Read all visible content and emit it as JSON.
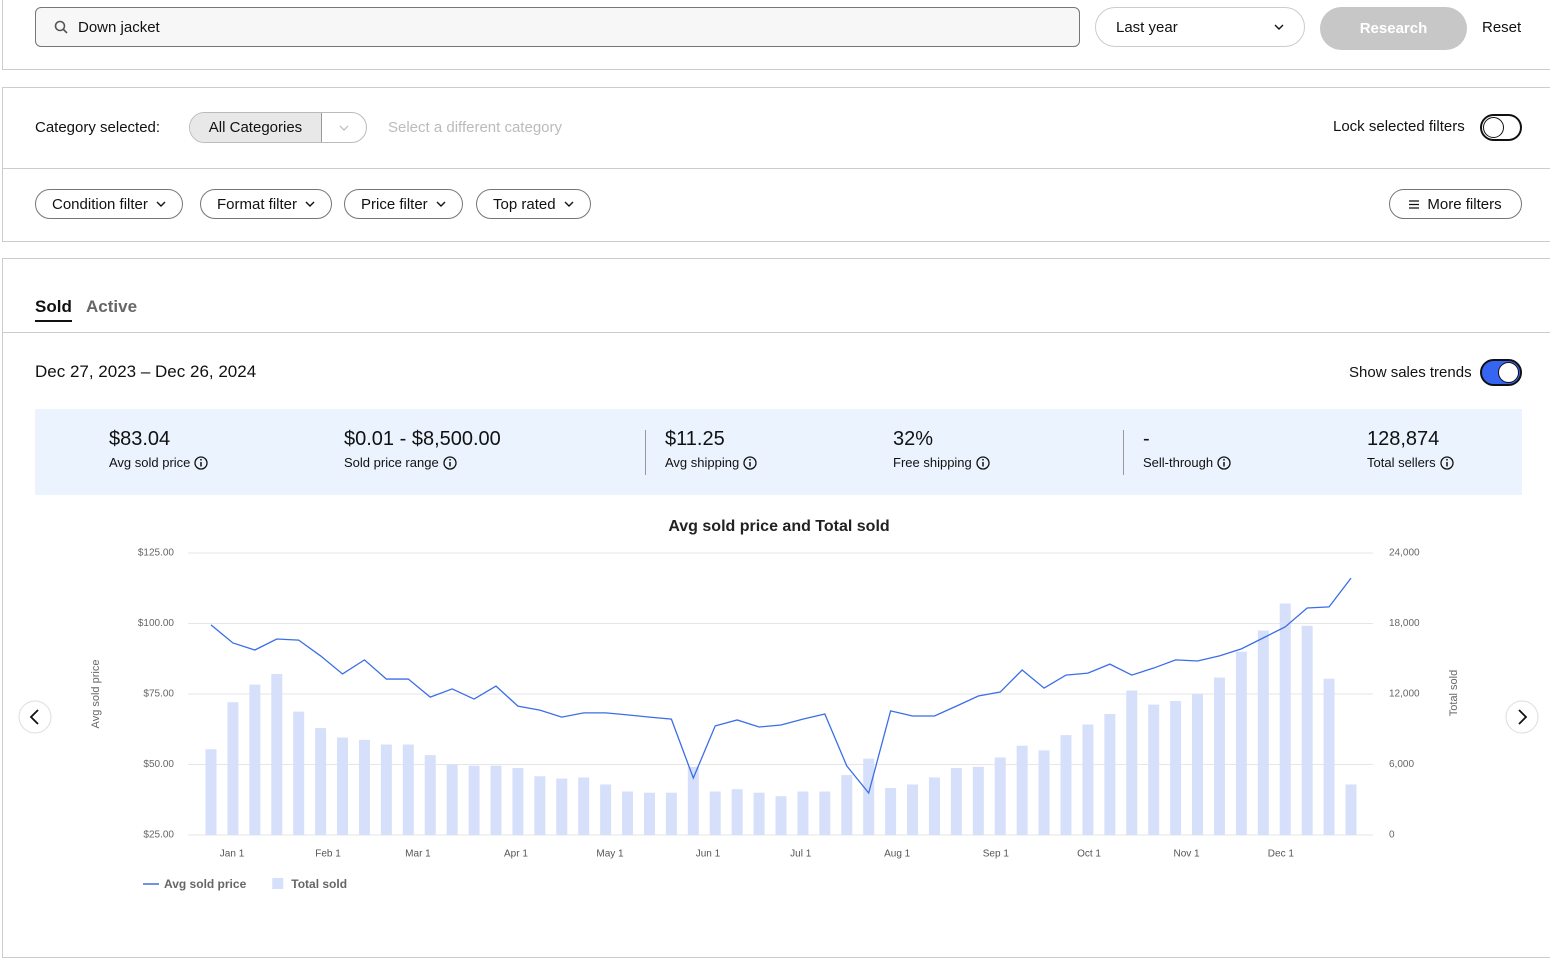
{
  "search": {
    "query": "Down jacket",
    "period": "Last year",
    "research_button": "Research",
    "reset_button": "Reset"
  },
  "category": {
    "label": "Category selected:",
    "selected": "All Categories",
    "hint": "Select a different category",
    "lock_label": "Lock selected filters"
  },
  "filters": {
    "items": [
      "Condition filter",
      "Format filter",
      "Price filter",
      "Top rated"
    ],
    "more": "More filters"
  },
  "tabs": [
    "Sold",
    "Active"
  ],
  "summary": {
    "date_range": "Dec 27, 2023 – Dec 26, 2024",
    "trends_label": "Show sales trends",
    "stats": [
      {
        "value": "$83.04",
        "label": "Avg sold price"
      },
      {
        "value": "$0.01 - $8,500.00",
        "label": "Sold price range"
      },
      {
        "value": "$11.25",
        "label": "Avg shipping"
      },
      {
        "value": "32%",
        "label": "Free shipping"
      },
      {
        "value": "-",
        "label": "Sell-through"
      },
      {
        "value": "128,874",
        "label": "Total sellers"
      }
    ]
  },
  "chart_data": {
    "type": "bar-line",
    "title": "Avg sold price and Total sold",
    "ylabel": "Avg sold price",
    "y2label": "Total sold",
    "categories": [
      null,
      null,
      null,
      null,
      null,
      null,
      null,
      null,
      null,
      null,
      null,
      null,
      null,
      null,
      null,
      null,
      null,
      null,
      null,
      null,
      null,
      null,
      null,
      null,
      null,
      null,
      null,
      null,
      null,
      null,
      null,
      null,
      null,
      null,
      null,
      null,
      null,
      null,
      null,
      null,
      null,
      null,
      null,
      null,
      null,
      null,
      null,
      null,
      null,
      null,
      null,
      null,
      null
    ],
    "xticks": [
      {
        "value": 0.96,
        "label": "Jan 1"
      },
      {
        "value": 5.34,
        "label": "Feb 1"
      },
      {
        "value": 9.44,
        "label": "Mar 1"
      },
      {
        "value": 13.91,
        "label": "Apr 1"
      },
      {
        "value": 18.2,
        "label": "May 1"
      },
      {
        "value": 22.67,
        "label": "Jun 1"
      },
      {
        "value": 26.9,
        "label": "Jul 1"
      },
      {
        "value": 31.3,
        "label": "Aug 1"
      },
      {
        "value": 35.8,
        "label": "Sep 1"
      },
      {
        "value": 40.05,
        "label": "Oct 1"
      },
      {
        "value": 44.5,
        "label": "Nov 1"
      },
      {
        "value": 48.8,
        "label": "Dec 1"
      }
    ],
    "ylim": [
      25,
      125
    ],
    "yticks": [
      {
        "value": 25,
        "label": "$25.00"
      },
      {
        "value": 50,
        "label": "$50.00"
      },
      {
        "value": 75,
        "label": "$75.00"
      },
      {
        "value": 100,
        "label": "$100.00"
      },
      {
        "value": 125,
        "label": "$125.00"
      }
    ],
    "y2lim": [
      0,
      24000
    ],
    "y2ticks": [
      0,
      {
        "value": 6000,
        "label": "6,000"
      },
      {
        "value": 12000,
        "label": "12,000"
      },
      {
        "value": 18000,
        "label": "18,000"
      },
      {
        "value": 24000,
        "label": "24,000"
      }
    ],
    "grid": true,
    "series": [
      {
        "name": "Avg sold price",
        "type": "line",
        "color": "#3b6ee6",
        "values": [
          99.5,
          93.1,
          90.6,
          94.5,
          94.1,
          88.5,
          82.1,
          87.1,
          80.3,
          80.3,
          73.9,
          76.8,
          73.2,
          77.8,
          70.7,
          69.3,
          66.8,
          68.3,
          68.3,
          67.6,
          66.8,
          66.1,
          45.2,
          63.7,
          65.8,
          63.3,
          64.0,
          66.1,
          67.9,
          49.5,
          39.9,
          69.0,
          67.2,
          67.2,
          70.7,
          74.3,
          75.7,
          83.5,
          77.1,
          81.7,
          82.4,
          85.6,
          81.7,
          84.2,
          87.1,
          86.7,
          88.5,
          91.0,
          94.9,
          98.8,
          105.5,
          105.9,
          116.1
        ]
      },
      {
        "name": "Total sold",
        "type": "bar",
        "axis": "y2",
        "color": "#d6e0fa",
        "values": [
          7300,
          11300,
          12800,
          13700,
          10500,
          9100,
          8300,
          8100,
          7700,
          7700,
          6800,
          6000,
          5900,
          5900,
          5700,
          5000,
          4800,
          4900,
          4300,
          3700,
          3600,
          3600,
          5800,
          3700,
          3900,
          3600,
          3300,
          3700,
          3700,
          5100,
          6500,
          4000,
          4300,
          4900,
          5700,
          5800,
          6600,
          7600,
          7200,
          8500,
          9400,
          10300,
          12300,
          11100,
          11400,
          12000,
          13400,
          15600,
          17400,
          19700,
          17800,
          13300,
          4300
        ]
      }
    ]
  }
}
